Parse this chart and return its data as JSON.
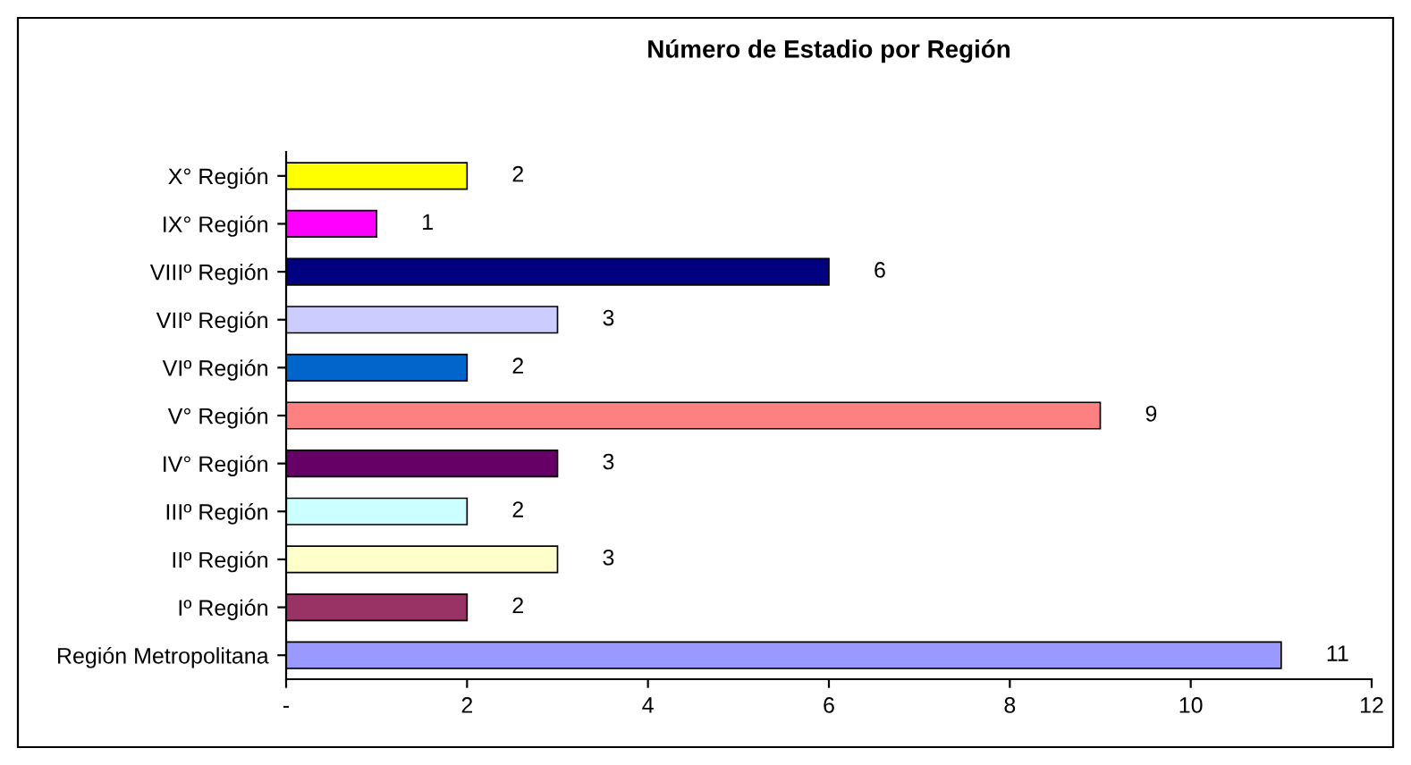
{
  "chart_data": {
    "type": "bar",
    "orientation": "horizontal",
    "title": "Número de Estadio por Región",
    "categories": [
      "X° Región",
      "IX° Región",
      "VIIIº Región",
      "VIIº Región",
      "VIº Región",
      "V° Región",
      "IV° Región",
      "IIIº Región",
      "IIº Región",
      "Iº Región",
      "Región Metropolitana"
    ],
    "values": [
      2,
      1,
      6,
      3,
      2,
      9,
      3,
      2,
      3,
      2,
      11
    ],
    "colors": [
      "#ffff00",
      "#ff00ff",
      "#000080",
      "#ccccff",
      "#0066cc",
      "#ff8080",
      "#660066",
      "#ccffff",
      "#ffffcc",
      "#993366",
      "#9999ff"
    ],
    "xlim": [
      0,
      12
    ],
    "xticks": [
      {
        "value": 0,
        "label": "-"
      },
      2,
      4,
      6,
      8,
      10,
      12
    ],
    "data_labels": true,
    "grid": false,
    "legend": false
  }
}
